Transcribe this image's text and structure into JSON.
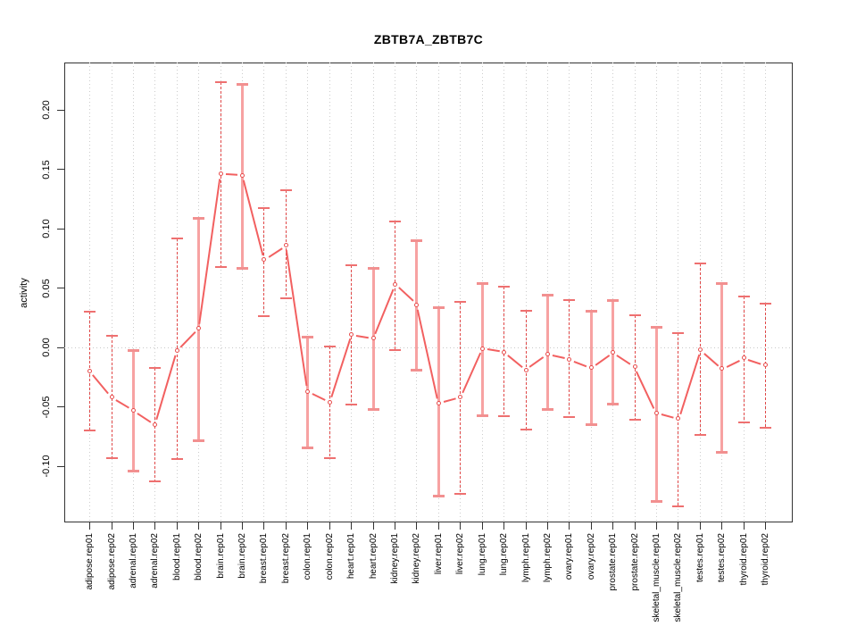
{
  "figure": {
    "title": "ZBTB7A_ZBTB7C",
    "ylabel": "activity"
  },
  "chart_data": {
    "type": "scatter",
    "subtype": "points-with-error-bars-connected",
    "title": "ZBTB7A_ZBTB7C",
    "xlabel": "",
    "ylabel": "activity",
    "ylim": [
      -0.147,
      0.241
    ],
    "yticks": [
      0.2,
      0.15,
      0.1,
      0.05,
      0.0,
      -0.05,
      -0.1
    ],
    "ytick_labels": [
      "0.20",
      "0.15",
      "0.10",
      "0.05",
      "0.00",
      "-0.05",
      "-0.10"
    ],
    "grid": "dotted vertical line per category, dotted horizontal line at y=0",
    "legend_position": "none",
    "categories": [
      "adipose.rep01",
      "adipose.rep02",
      "adrenal.rep01",
      "adrenal.rep02",
      "blood.rep01",
      "blood.rep02",
      "brain.rep01",
      "brain.rep02",
      "breast.rep01",
      "breast.rep02",
      "colon.rep01",
      "colon.rep02",
      "heart.rep01",
      "heart.rep02",
      "kidney.rep01",
      "kidney.rep02",
      "liver.rep01",
      "liver.rep02",
      "lung.rep01",
      "lung.rep02",
      "lymph.rep01",
      "lymph.rep02",
      "ovary.rep01",
      "ovary.rep02",
      "prostate.rep01",
      "prostate.rep02",
      "skeletal_muscle.rep01",
      "skeletal_muscle.rep02",
      "testes.rep01",
      "testes.rep02",
      "thyroid.rep01",
      "thyroid.rep02"
    ],
    "series": [
      {
        "name": "activity",
        "values": [
          -0.02,
          -0.042,
          -0.053,
          -0.065,
          -0.003,
          0.016,
          0.146,
          0.145,
          0.074,
          0.086,
          -0.037,
          -0.046,
          0.011,
          0.008,
          0.053,
          0.036,
          -0.047,
          -0.042,
          -0.001,
          -0.004,
          -0.019,
          -0.006,
          -0.01,
          -0.017,
          -0.004,
          -0.016,
          -0.055,
          -0.06,
          -0.002,
          -0.018,
          -0.009,
          -0.015
        ],
        "err_high": [
          0.03,
          0.01,
          -0.002,
          -0.017,
          0.092,
          0.109,
          0.223,
          0.222,
          0.117,
          0.132,
          0.009,
          0.001,
          0.069,
          0.067,
          0.106,
          0.09,
          0.034,
          0.038,
          0.054,
          0.051,
          0.031,
          0.044,
          0.04,
          0.031,
          0.04,
          0.027,
          0.017,
          0.012,
          0.071,
          0.054,
          0.043,
          0.037
        ],
        "err_low": [
          -0.07,
          -0.093,
          -0.104,
          -0.113,
          -0.094,
          -0.078,
          0.068,
          0.067,
          0.026,
          0.041,
          -0.084,
          -0.093,
          -0.048,
          -0.052,
          -0.002,
          -0.019,
          -0.125,
          -0.123,
          -0.057,
          -0.058,
          -0.069,
          -0.052,
          -0.059,
          -0.065,
          -0.047,
          -0.061,
          -0.129,
          -0.134,
          -0.074,
          -0.088,
          -0.063,
          -0.068
        ],
        "bar_styles": [
          "dashed",
          "dashed",
          "solid",
          "dashed",
          "dashed",
          "solid",
          "dashed",
          "solid",
          "dashed",
          "dashed",
          "solid",
          "dashed",
          "dashed",
          "solid",
          "dashed",
          "solid",
          "solid",
          "dashed",
          "solid",
          "dashed",
          "dashed",
          "solid",
          "dashed",
          "solid",
          "solid",
          "dashed",
          "solid",
          "dashed",
          "dashed",
          "solid",
          "dashed",
          "dashed"
        ]
      }
    ],
    "colors": {
      "point": "#e84c4c",
      "connector_line": "#f26060",
      "dashed_error_bar": "#e04848",
      "solid_error_bar": "#f7a2a2",
      "error_cap": "#f08080",
      "gridline": "#cccccc",
      "axis": "#333333"
    }
  }
}
